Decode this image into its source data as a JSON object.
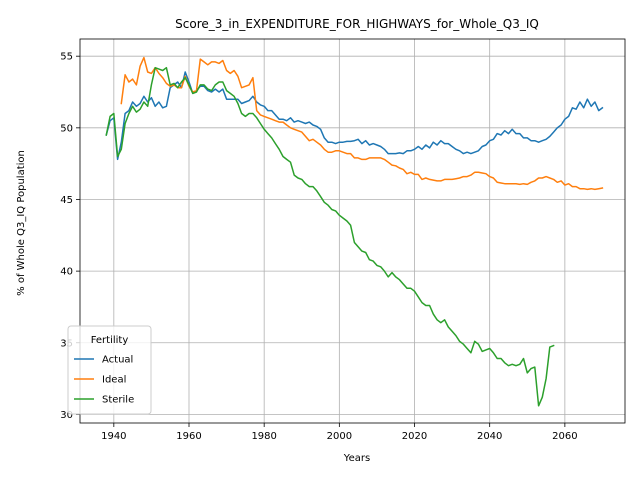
{
  "chart_data": {
    "type": "line",
    "title": "Score_3_in_EXPENDITURE_FOR_HIGHWAYS_for_Whole_Q3_IQ",
    "xlabel": "Years",
    "ylabel": "% of Whole Q3_IQ Population",
    "xlim": [
      1931,
      2076
    ],
    "ylim": [
      29.4,
      56.2
    ],
    "xticks": [
      1940,
      1960,
      1980,
      2000,
      2020,
      2040,
      2060
    ],
    "yticks": [
      30,
      35,
      40,
      45,
      50,
      55
    ],
    "grid": true,
    "legend": {
      "title": "Fertility",
      "placement": "lower-left"
    },
    "series": [
      {
        "name": "Actual",
        "color": "#1f77b4",
        "x": [
          1938,
          1939,
          1940,
          1941,
          1942,
          1943,
          1944,
          1945,
          1946,
          1947,
          1948,
          1949,
          1950,
          1951,
          1952,
          1953,
          1954,
          1955,
          1956,
          1957,
          1958,
          1959,
          1960,
          1961,
          1962,
          1963,
          1964,
          1965,
          1966,
          1967,
          1968,
          1969,
          1970,
          1971,
          1972,
          1973,
          1974,
          1975,
          1976,
          1977,
          1978,
          1979,
          1980,
          1981,
          1982,
          1983,
          1984,
          1985,
          1986,
          1987,
          1988,
          1989,
          1990,
          1991,
          1992,
          1993,
          1994,
          1995,
          1996,
          1997,
          1998,
          1999,
          2000,
          2001,
          2002,
          2003,
          2004,
          2005,
          2006,
          2007,
          2008,
          2009,
          2010,
          2011,
          2012,
          2013,
          2014,
          2015,
          2016,
          2017,
          2018,
          2019,
          2020,
          2021,
          2022,
          2023,
          2024,
          2025,
          2026,
          2027,
          2028,
          2029,
          2030,
          2031,
          2032,
          2033,
          2034,
          2035,
          2036,
          2037,
          2038,
          2039,
          2040,
          2041,
          2042,
          2043,
          2044,
          2045,
          2046,
          2047,
          2048,
          2049,
          2050,
          2051,
          2052,
          2053,
          2054,
          2055,
          2056,
          2057,
          2058,
          2059,
          2060,
          2061,
          2062,
          2063,
          2064,
          2065,
          2066,
          2067,
          2068,
          2069,
          2070
        ],
        "y": [
          49.5,
          50.5,
          50.7,
          47.8,
          49.0,
          51.0,
          51.2,
          51.8,
          51.5,
          51.7,
          52.2,
          51.8,
          52.1,
          51.5,
          51.8,
          51.4,
          51.5,
          52.8,
          53.0,
          53.2,
          52.8,
          53.9,
          53.2,
          52.4,
          52.6,
          52.9,
          52.9,
          52.6,
          52.5,
          52.7,
          52.5,
          52.7,
          52.0,
          52.0,
          52.0,
          52.0,
          51.7,
          51.8,
          51.9,
          52.2,
          51.8,
          51.6,
          51.5,
          51.2,
          51.2,
          50.9,
          50.6,
          50.6,
          50.5,
          50.7,
          50.4,
          50.5,
          50.4,
          50.3,
          50.4,
          50.2,
          50.1,
          49.9,
          49.3,
          49.0,
          49.0,
          48.9,
          49.0,
          49.0,
          49.05,
          49.05,
          49.1,
          49.2,
          48.9,
          49.1,
          48.8,
          48.9,
          48.8,
          48.7,
          48.5,
          48.2,
          48.2,
          48.2,
          48.25,
          48.2,
          48.4,
          48.4,
          48.5,
          48.7,
          48.5,
          48.8,
          48.6,
          49.0,
          48.8,
          49.1,
          48.9,
          48.9,
          48.7,
          48.5,
          48.4,
          48.2,
          48.3,
          48.2,
          48.3,
          48.4,
          48.7,
          48.8,
          49.1,
          49.2,
          49.6,
          49.5,
          49.8,
          49.6,
          49.9,
          49.6,
          49.6,
          49.3,
          49.3,
          49.1,
          49.1,
          49.0,
          49.1,
          49.2,
          49.4,
          49.7,
          50.0,
          50.2,
          50.6,
          50.8,
          51.4,
          51.3,
          51.8,
          51.4,
          52.0,
          51.5,
          51.8,
          51.2,
          51.4
        ]
      },
      {
        "name": "Ideal",
        "color": "#ff7f0e",
        "x": [
          1942,
          1943,
          1944,
          1945,
          1946,
          1947,
          1948,
          1949,
          1950,
          1951,
          1952,
          1953,
          1954,
          1955,
          1956,
          1957,
          1958,
          1959,
          1960,
          1961,
          1962,
          1963,
          1964,
          1965,
          1966,
          1967,
          1968,
          1969,
          1970,
          1971,
          1972,
          1973,
          1974,
          1975,
          1976,
          1977,
          1978,
          1979,
          1980,
          1981,
          1982,
          1983,
          1984,
          1985,
          1986,
          1987,
          1988,
          1989,
          1990,
          1991,
          1992,
          1993,
          1994,
          1995,
          1996,
          1997,
          1998,
          1999,
          2000,
          2001,
          2002,
          2003,
          2004,
          2005,
          2006,
          2007,
          2008,
          2009,
          2010,
          2011,
          2012,
          2013,
          2014,
          2015,
          2016,
          2017,
          2018,
          2019,
          2020,
          2021,
          2022,
          2023,
          2024,
          2025,
          2026,
          2027,
          2028,
          2029,
          2030,
          2031,
          2032,
          2033,
          2034,
          2035,
          2036,
          2037,
          2038,
          2039,
          2040,
          2041,
          2042,
          2043,
          2044,
          2045,
          2046,
          2047,
          2048,
          2049,
          2050,
          2051,
          2052,
          2053,
          2054,
          2055,
          2056,
          2057,
          2058,
          2059,
          2060,
          2061,
          2062,
          2063,
          2064,
          2065,
          2066,
          2067,
          2068,
          2069,
          2070
        ],
        "y": [
          51.7,
          53.7,
          53.2,
          53.4,
          53.0,
          54.3,
          54.9,
          53.9,
          53.8,
          54.2,
          53.8,
          53.5,
          53.1,
          52.9,
          53.0,
          52.8,
          52.8,
          53.6,
          52.9,
          52.5,
          52.6,
          54.8,
          54.6,
          54.4,
          54.6,
          54.6,
          54.5,
          54.7,
          54.0,
          53.8,
          54.0,
          53.6,
          52.8,
          52.9,
          53.0,
          53.5,
          51.2,
          50.9,
          50.8,
          50.7,
          50.6,
          50.5,
          50.4,
          50.4,
          50.2,
          50.0,
          49.9,
          49.8,
          49.7,
          49.4,
          49.1,
          49.2,
          49.0,
          48.8,
          48.5,
          48.3,
          48.3,
          48.4,
          48.4,
          48.3,
          48.2,
          48.2,
          47.9,
          47.9,
          47.8,
          47.8,
          47.9,
          47.9,
          47.9,
          47.9,
          47.8,
          47.6,
          47.4,
          47.35,
          47.2,
          47.1,
          46.8,
          46.9,
          46.75,
          46.75,
          46.4,
          46.5,
          46.4,
          46.35,
          46.3,
          46.3,
          46.4,
          46.4,
          46.4,
          46.45,
          46.5,
          46.6,
          46.6,
          46.7,
          46.9,
          46.9,
          46.85,
          46.8,
          46.6,
          46.5,
          46.2,
          46.15,
          46.1,
          46.1,
          46.1,
          46.1,
          46.05,
          46.1,
          46.05,
          46.2,
          46.3,
          46.5,
          46.5,
          46.6,
          46.5,
          46.4,
          46.2,
          46.3,
          46.0,
          46.1,
          45.9,
          45.9,
          45.75,
          45.75,
          45.7,
          45.75,
          45.7,
          45.75,
          45.8
        ]
      },
      {
        "name": "Sterile",
        "color": "#2ca02c",
        "x": [
          1938,
          1939,
          1940,
          1941,
          1942,
          1943,
          1944,
          1945,
          1946,
          1947,
          1948,
          1949,
          1950,
          1951,
          1952,
          1953,
          1954,
          1955,
          1956,
          1957,
          1958,
          1959,
          1960,
          1961,
          1962,
          1963,
          1964,
          1965,
          1966,
          1967,
          1968,
          1969,
          1970,
          1971,
          1972,
          1973,
          1974,
          1975,
          1976,
          1977,
          1978,
          1979,
          1980,
          1981,
          1982,
          1983,
          1984,
          1985,
          1986,
          1987,
          1988,
          1989,
          1990,
          1991,
          1992,
          1993,
          1994,
          1995,
          1996,
          1997,
          1998,
          1999,
          2000,
          2001,
          2002,
          2003,
          2004,
          2005,
          2006,
          2007,
          2008,
          2009,
          2010,
          2011,
          2012,
          2013,
          2014,
          2015,
          2016,
          2017,
          2018,
          2019,
          2020,
          2021,
          2022,
          2023,
          2024,
          2025,
          2026,
          2027,
          2028,
          2029,
          2030,
          2031,
          2032,
          2033,
          2034,
          2035,
          2036,
          2037,
          2038,
          2039,
          2040,
          2041,
          2042,
          2043,
          2044,
          2045,
          2046,
          2047,
          2048,
          2049,
          2050,
          2051,
          2052,
          2053,
          2054,
          2055,
          2056,
          2057
        ],
        "y": [
          49.5,
          50.8,
          51.0,
          48.0,
          48.5,
          50.3,
          51.0,
          51.5,
          51.1,
          51.3,
          51.8,
          51.5,
          53.0,
          54.2,
          54.1,
          54.0,
          54.2,
          53.0,
          53.1,
          52.8,
          53.2,
          53.5,
          53.0,
          52.4,
          52.5,
          53.0,
          53.0,
          52.7,
          52.6,
          53.0,
          53.2,
          53.2,
          52.6,
          52.4,
          52.2,
          51.7,
          51.0,
          50.8,
          51.0,
          51.0,
          50.7,
          50.3,
          49.9,
          49.6,
          49.3,
          48.9,
          48.5,
          48.0,
          47.8,
          47.6,
          46.7,
          46.5,
          46.4,
          46.1,
          45.9,
          45.9,
          45.6,
          45.2,
          44.8,
          44.6,
          44.3,
          44.2,
          43.9,
          43.7,
          43.5,
          43.2,
          42.0,
          41.7,
          41.4,
          41.3,
          40.8,
          40.7,
          40.4,
          40.3,
          40.0,
          39.6,
          39.9,
          39.6,
          39.4,
          39.1,
          38.8,
          38.8,
          38.6,
          38.2,
          37.8,
          37.6,
          37.6,
          37.0,
          36.6,
          36.4,
          36.6,
          36.1,
          35.8,
          35.5,
          35.1,
          34.9,
          34.6,
          34.3,
          35.1,
          34.9,
          34.4,
          34.5,
          34.6,
          34.3,
          33.9,
          33.9,
          33.6,
          33.4,
          33.5,
          33.4,
          33.5,
          33.9,
          32.9,
          33.2,
          33.3,
          30.6,
          31.2,
          32.5,
          34.7,
          34.8
        ]
      }
    ]
  }
}
